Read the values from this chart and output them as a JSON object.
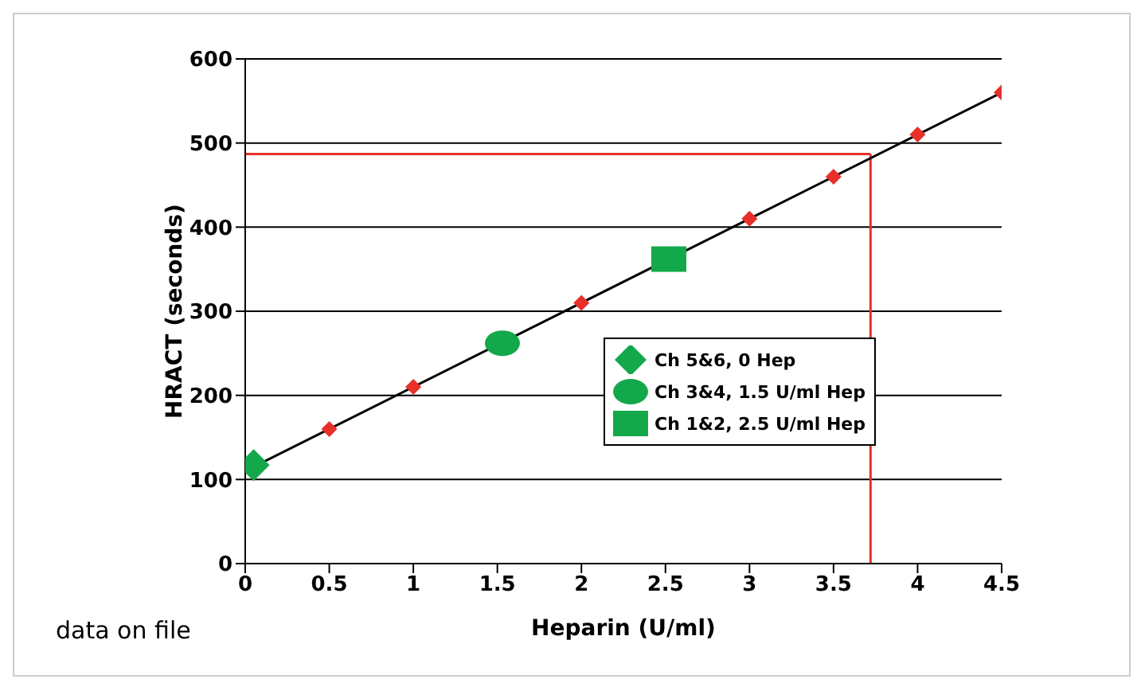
{
  "chart_data": {
    "type": "scatter",
    "xlabel": "Heparin (U/ml)",
    "ylabel": "HRACT (seconds)",
    "xlim": [
      0,
      4.5
    ],
    "xticks": [
      0,
      0.5,
      1,
      1.5,
      2,
      2.5,
      3,
      3.5,
      4,
      4.5
    ],
    "ylim": [
      0,
      600
    ],
    "yticks": [
      0,
      100,
      200,
      300,
      400,
      500,
      600
    ],
    "grid": "y",
    "legend": "right",
    "series": [
      {
        "type": "line",
        "color": "#000000",
        "x": [
          0,
          4.5
        ],
        "values": [
          110,
          560
        ]
      },
      {
        "color": "#e8302a",
        "marker": "diamond",
        "x": [
          0.5,
          1,
          2,
          3,
          3.5,
          4,
          4.5
        ],
        "values": [
          160,
          210,
          310,
          410,
          460,
          510,
          560
        ]
      },
      {
        "name": "Ch 5&6, 0 Hep",
        "color": "#13a84a",
        "marker": "diamond",
        "x": [
          0.05
        ],
        "values": [
          117
        ]
      },
      {
        "name": "Ch 3&4, 1.5 U/ml Hep",
        "color": "#13a84a",
        "marker": "circle",
        "x": [
          1.53
        ],
        "values": [
          262
        ]
      },
      {
        "name": "Ch 1&2, 2.5 U/ml Hep",
        "color": "#13a84a",
        "marker": "square",
        "x": [
          2.52
        ],
        "values": [
          362
        ]
      }
    ],
    "ref_lines": [
      {
        "axis": "y",
        "value": 487,
        "color": "#e8302a"
      },
      {
        "axis": "x",
        "value": 3.72,
        "color": "#e8302a"
      }
    ],
    "annotations": [
      "data on file"
    ]
  }
}
